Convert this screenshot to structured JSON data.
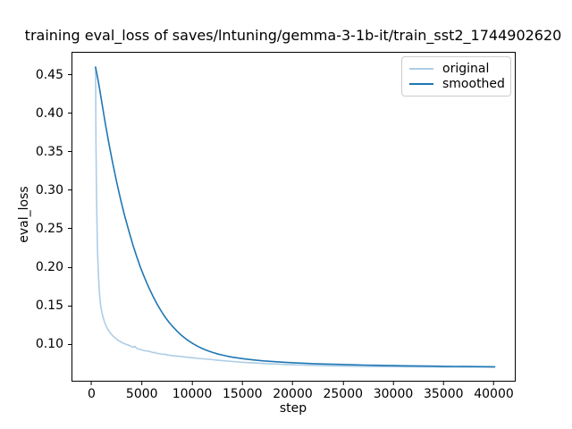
{
  "chart_data": {
    "type": "line",
    "title": "training eval_loss of saves/lntuning/gemma-3-1b-it/train_sst2_1744902620",
    "xlabel": "step",
    "ylabel": "eval_loss",
    "xlim": [
      -2000,
      42000
    ],
    "ylim": [
      0.054,
      0.4796
    ],
    "grid": false,
    "legend_position": "upper right",
    "xticks": [
      0,
      5000,
      10000,
      15000,
      20000,
      25000,
      30000,
      35000,
      40000
    ],
    "xtick_labels": [
      "0",
      "5000",
      "10000",
      "15000",
      "20000",
      "25000",
      "30000",
      "35000",
      "40000"
    ],
    "yticks": [
      0.1,
      0.15,
      0.2,
      0.25,
      0.3,
      0.35,
      0.4,
      0.45
    ],
    "ytick_labels": [
      "0.10",
      "0.15",
      "0.20",
      "0.25",
      "0.30",
      "0.35",
      "0.40",
      "0.45"
    ],
    "spine_color": "#000000",
    "legend_border_color": "#cccccc",
    "series": [
      {
        "name": "original",
        "color": "#aecde6",
        "x": [
          300,
          350,
          400,
          450,
          500,
          600,
          700,
          800,
          900,
          1000,
          1200,
          1400,
          1600,
          1800,
          2000,
          2200,
          2400,
          2600,
          2800,
          3000,
          3200,
          3400,
          3600,
          3800,
          4000,
          4200,
          4400,
          4600,
          4800,
          5000,
          5200,
          5400,
          5600,
          5800,
          6000,
          6200,
          6400,
          6600,
          6800,
          7000,
          7200,
          7400,
          7600,
          7800,
          8000,
          8400,
          8800,
          9200,
          9600,
          10000,
          10500,
          11000,
          11500,
          12000,
          12500,
          13000,
          13500,
          14000,
          14500,
          15000,
          16000,
          17000,
          18000,
          19000,
          20000,
          21000,
          22000,
          23000,
          24000,
          25000,
          26000,
          27000,
          28000,
          29000,
          30000,
          31000,
          32000,
          33000,
          34000,
          35000,
          36000,
          37000,
          38000,
          39000,
          40000
        ],
        "y": [
          0.461,
          0.36,
          0.295,
          0.252,
          0.223,
          0.187,
          0.166,
          0.153,
          0.145,
          0.1385,
          0.13,
          0.1235,
          0.119,
          0.1155,
          0.1125,
          0.11,
          0.108,
          0.106,
          0.1045,
          0.103,
          0.102,
          0.101,
          0.1,
          0.099,
          0.0975,
          0.0985,
          0.096,
          0.095,
          0.0945,
          0.0935,
          0.093,
          0.0928,
          0.092,
          0.0916,
          0.0905,
          0.0908,
          0.0895,
          0.0892,
          0.0888,
          0.0882,
          0.0885,
          0.0875,
          0.0872,
          0.0868,
          0.0863,
          0.086,
          0.0855,
          0.0848,
          0.0843,
          0.0838,
          0.083,
          0.0824,
          0.0818,
          0.0812,
          0.0806,
          0.08,
          0.0795,
          0.0789,
          0.0784,
          0.0779,
          0.0771,
          0.0764,
          0.0758,
          0.0752,
          0.0747,
          0.0743,
          0.0739,
          0.0736,
          0.0733,
          0.073,
          0.0728,
          0.0726,
          0.0724,
          0.0723,
          0.0722,
          0.0721,
          0.072,
          0.0719,
          0.0719,
          0.0718,
          0.0718,
          0.0717,
          0.0717,
          0.0717,
          0.0716
        ]
      },
      {
        "name": "smoothed",
        "color": "#1f77b4",
        "x": [
          300,
          500,
          700,
          1000,
          1300,
          1600,
          2000,
          2400,
          2800,
          3200,
          3600,
          4000,
          4400,
          4800,
          5200,
          5600,
          6000,
          6400,
          6800,
          7200,
          7600,
          8000,
          8400,
          8800,
          9200,
          9600,
          10000,
          10500,
          11000,
          11500,
          12000,
          12500,
          13000,
          13500,
          14000,
          14500,
          15000,
          16000,
          17000,
          18000,
          19000,
          20000,
          21000,
          22000,
          23000,
          24000,
          25000,
          26000,
          27000,
          28000,
          29000,
          30000,
          31000,
          32000,
          33000,
          34000,
          35000,
          36000,
          37000,
          38000,
          39000,
          40000
        ],
        "y": [
          0.461,
          0.448,
          0.433,
          0.409,
          0.386,
          0.364,
          0.337,
          0.312,
          0.289,
          0.268,
          0.249,
          0.231,
          0.215,
          0.2,
          0.187,
          0.175,
          0.164,
          0.154,
          0.145,
          0.137,
          0.13,
          0.124,
          0.1185,
          0.1135,
          0.1092,
          0.1054,
          0.102,
          0.0984,
          0.0953,
          0.0927,
          0.0905,
          0.0886,
          0.087,
          0.0856,
          0.0844,
          0.0834,
          0.0825,
          0.081,
          0.0798,
          0.0788,
          0.078,
          0.0773,
          0.0767,
          0.0762,
          0.0757,
          0.0753,
          0.075,
          0.0746,
          0.0743,
          0.0741,
          0.0738,
          0.0736,
          0.0734,
          0.0732,
          0.073,
          0.0729,
          0.0727,
          0.0726,
          0.0724,
          0.0723,
          0.0722,
          0.0721
        ]
      }
    ]
  }
}
